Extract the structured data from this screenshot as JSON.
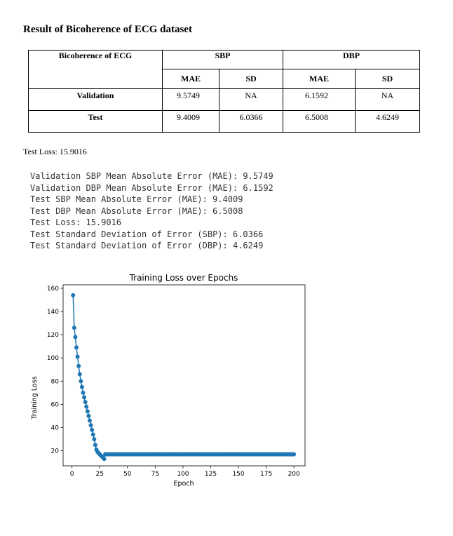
{
  "doc": {
    "title": "Result of Bicoherence of ECG dataset",
    "table": {
      "corner": "Bicoherence of ECG",
      "groups": [
        "SBP",
        "DBP"
      ],
      "subheaders": [
        "MAE",
        "SD",
        "MAE",
        "SD"
      ],
      "rows": [
        {
          "label": "Validation",
          "values": [
            "9.5749",
            "NA",
            "6.1592",
            "NA"
          ]
        },
        {
          "label": "Test",
          "values": [
            "9.4009",
            "6.0366",
            "6.5008",
            "4.6249"
          ]
        }
      ]
    },
    "test_loss_line": "Test Loss: 15.9016",
    "console_lines": [
      "Validation SBP Mean Absolute Error (MAE): 9.5749",
      "Validation DBP Mean Absolute Error (MAE): 6.1592",
      "Test SBP Mean Absolute Error (MAE): 9.4009",
      "Test DBP Mean Absolute Error (MAE): 6.5008",
      "Test Loss: 15.9016",
      "Test Standard Deviation of Error (SBP): 6.0366",
      "Test Standard Deviation of Error (DBP): 4.6249"
    ]
  },
  "chart_data": {
    "type": "line",
    "title": "Training Loss over Epochs",
    "xlabel": "Epoch",
    "ylabel": "Training Loss",
    "xlim": [
      -8,
      210
    ],
    "ylim": [
      7,
      163
    ],
    "xticks": [
      0,
      25,
      50,
      75,
      100,
      125,
      150,
      175,
      200
    ],
    "yticks": [
      20,
      40,
      60,
      80,
      100,
      120,
      140,
      160
    ],
    "grid": false,
    "color": "#1f77b4",
    "series": [
      {
        "x": [
          1,
          2,
          3,
          4,
          5,
          6,
          7,
          8,
          9,
          10,
          11,
          12,
          13,
          14,
          15,
          16,
          17,
          18,
          19,
          20,
          21,
          22,
          23,
          24,
          25,
          26,
          27,
          28,
          29,
          30
        ],
        "y": [
          154,
          126,
          118,
          109,
          101,
          93,
          86,
          80,
          75,
          70,
          66,
          62,
          58,
          54,
          50,
          46,
          42,
          38,
          34,
          30,
          25,
          21,
          19,
          18,
          17,
          16,
          15,
          14,
          13,
          17
        ],
        "plateau": {
          "x_start": 31,
          "x_end": 200,
          "y": 17
        }
      }
    ]
  }
}
